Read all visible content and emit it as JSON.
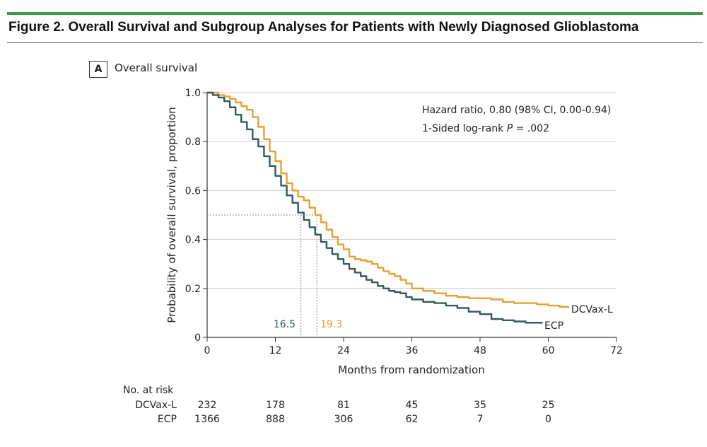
{
  "figure": {
    "title": "Figure 2. Overall Survival and Subgroup Analyses for Patients with Newly Diagnosed Glioblastoma",
    "panel_label": "A",
    "panel_title": "Overall survival"
  },
  "colors": {
    "dcvax": "#e6a032",
    "ecp": "#2f5a5c",
    "grid": "#cccccc",
    "accent": "#3a9a47"
  },
  "chart_data": {
    "type": "line",
    "title": "Overall survival",
    "xlabel": "Months from randomization",
    "ylabel": "Probability of overall survival, proportion",
    "xlim": [
      0,
      72
    ],
    "ylim": [
      0,
      1.0
    ],
    "x_ticks": [
      0,
      12,
      24,
      36,
      48,
      60,
      72
    ],
    "y_ticks": [
      0,
      0.2,
      0.4,
      0.6,
      0.8,
      1.0
    ],
    "y_tick_labels": [
      "0",
      "0.2",
      "0.4",
      "0.6",
      "0.8",
      "1.0"
    ],
    "grid": "horizontal",
    "series": [
      {
        "name": "DCVax-L",
        "color": "#e6a032",
        "x": [
          0,
          1,
          2,
          3,
          4,
          5,
          6,
          7,
          8,
          9,
          10,
          11,
          12,
          13,
          14,
          15,
          16,
          17,
          18,
          19,
          20,
          21,
          22,
          23,
          24,
          25,
          26,
          27,
          28,
          29,
          30,
          31,
          32,
          33,
          34,
          35,
          36,
          38,
          40,
          42,
          44,
          46,
          48,
          50,
          52,
          54,
          56,
          58,
          60,
          62,
          63.5
        ],
        "y": [
          1.0,
          1.0,
          0.99,
          0.985,
          0.975,
          0.96,
          0.945,
          0.93,
          0.9,
          0.86,
          0.81,
          0.76,
          0.72,
          0.67,
          0.63,
          0.6,
          0.575,
          0.56,
          0.53,
          0.5,
          0.47,
          0.44,
          0.41,
          0.38,
          0.36,
          0.33,
          0.32,
          0.315,
          0.31,
          0.3,
          0.285,
          0.27,
          0.26,
          0.25,
          0.235,
          0.22,
          0.2,
          0.19,
          0.18,
          0.17,
          0.165,
          0.16,
          0.16,
          0.155,
          0.145,
          0.14,
          0.14,
          0.135,
          0.13,
          0.125,
          0.12
        ]
      },
      {
        "name": "ECP",
        "color": "#2f5a5c",
        "x": [
          0,
          1,
          2,
          3,
          4,
          5,
          6,
          7,
          8,
          9,
          10,
          11,
          12,
          13,
          14,
          15,
          16,
          17,
          18,
          19,
          20,
          21,
          22,
          23,
          24,
          25,
          26,
          27,
          28,
          29,
          30,
          31,
          32,
          33,
          34,
          35,
          36,
          38,
          40,
          42,
          44,
          46,
          48,
          50,
          52,
          54,
          56,
          58,
          59
        ],
        "y": [
          1.0,
          0.99,
          0.98,
          0.965,
          0.94,
          0.91,
          0.88,
          0.85,
          0.81,
          0.78,
          0.74,
          0.7,
          0.66,
          0.62,
          0.58,
          0.55,
          0.51,
          0.48,
          0.45,
          0.42,
          0.39,
          0.365,
          0.34,
          0.32,
          0.3,
          0.28,
          0.265,
          0.25,
          0.235,
          0.225,
          0.21,
          0.2,
          0.19,
          0.185,
          0.18,
          0.165,
          0.155,
          0.145,
          0.14,
          0.13,
          0.12,
          0.105,
          0.095,
          0.075,
          0.07,
          0.065,
          0.06,
          0.06,
          0.06
        ]
      }
    ],
    "series_labels": [
      "DCVax-L",
      "ECP"
    ],
    "annotations": {
      "hazard_ratio": "Hazard ratio, 0.80 (98% CI, 0.00-0.94)",
      "logrank_prefix": "1-Sided log-rank ",
      "logrank_p": "P",
      "logrank_suffix": " = .002",
      "median_line_y": 0.5,
      "ecp_median": 16.5,
      "ecp_median_label": "16.5",
      "dcvax_median": 19.3,
      "dcvax_median_label": "19.3"
    }
  },
  "risk_table": {
    "title": "No. at risk",
    "rows": [
      {
        "label": "DCVax-L",
        "values": [
          "232",
          "178",
          "81",
          "45",
          "35",
          "25"
        ]
      },
      {
        "label": "ECP",
        "values": [
          "1366",
          "888",
          "306",
          "62",
          "7",
          "0"
        ]
      }
    ]
  }
}
